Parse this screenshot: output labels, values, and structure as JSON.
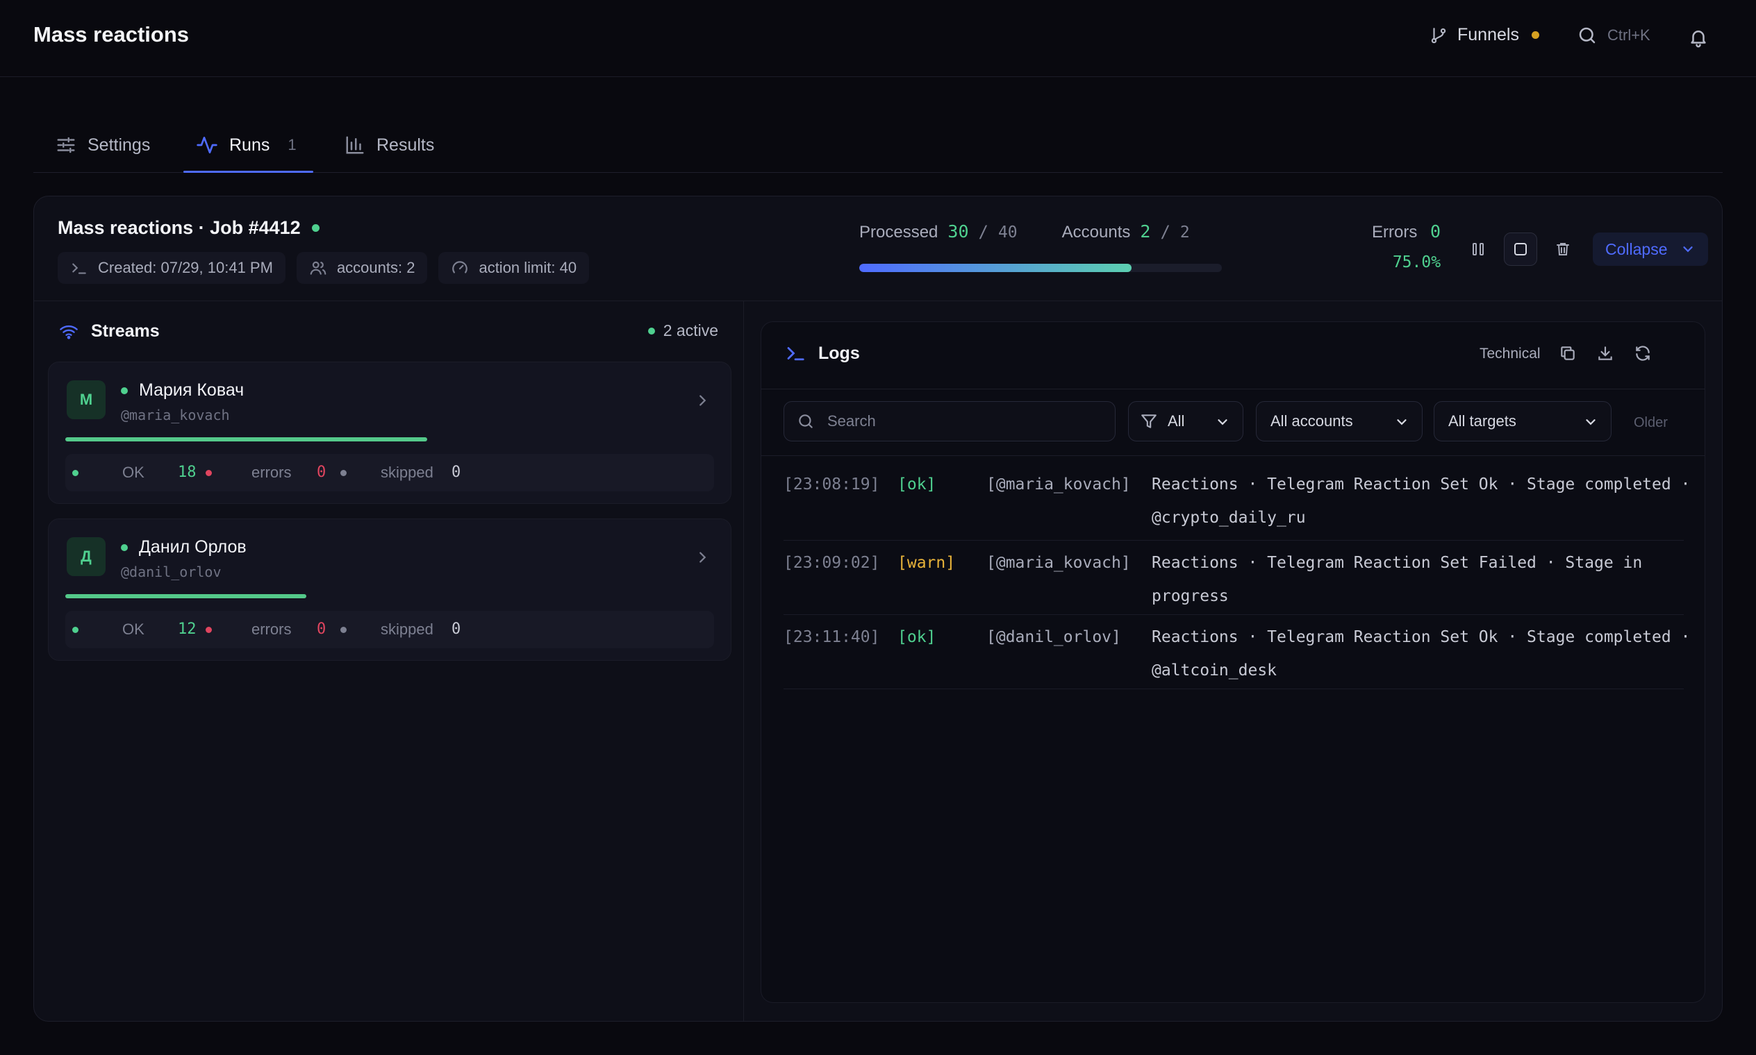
{
  "header": {
    "title": "Mass reactions",
    "funnels_label": "Funnels",
    "search_shortcut": "Ctrl+K"
  },
  "tabs": [
    {
      "label": "Settings"
    },
    {
      "label": "Runs",
      "count": "1"
    },
    {
      "label": "Results"
    }
  ],
  "job": {
    "title": "Mass reactions · Job #4412",
    "created": "Created: 07/29, 10:41 PM",
    "accounts": "accounts: 2",
    "action_limit": "action limit: 40",
    "processed_label": "Processed",
    "processed_value": "30",
    "processed_total": "40",
    "progress_fraction": 0.75,
    "accounts_label": "Accounts",
    "accounts_value": "2",
    "accounts_total": "2",
    "errors_label": "Errors",
    "errors_value": "0",
    "percent": "75.0%",
    "collapse_label": "Collapse"
  },
  "streams": {
    "title": "Streams",
    "active": "2 active",
    "items": [
      {
        "initial": "М",
        "name": "Мария Ковач",
        "handle": "@maria_kovach",
        "progress_fraction": 0.558,
        "ok_label": "OK",
        "ok": "18",
        "errors_label": "errors",
        "errors": "0",
        "skipped_label": "skipped",
        "skipped": "0"
      },
      {
        "initial": "Д",
        "name": "Данил Орлов",
        "handle": "@danil_orlov",
        "progress_fraction": 0.372,
        "ok_label": "OK",
        "ok": "12",
        "errors_label": "errors",
        "errors": "0",
        "skipped_label": "skipped",
        "skipped": "0"
      }
    ]
  },
  "logs": {
    "title": "Logs",
    "technical_label": "Technical",
    "search_placeholder": "Search",
    "filter_all": "All",
    "filter_accounts": "All accounts",
    "filter_targets": "All targets",
    "older_label": "Older",
    "entries": [
      {
        "time": "[23:08:19]",
        "level": "[ok]",
        "account": "[@maria_kovach]",
        "message": "Reactions · Telegram Reaction Set Ok · Stage completed · @crypto_daily_ru"
      },
      {
        "time": "[23:09:02]",
        "level": "[warn]",
        "account": "[@maria_kovach]",
        "message": "Reactions · Telegram Reaction Set Failed · Stage in progress"
      },
      {
        "time": "[23:11:40]",
        "level": "[ok]",
        "account": "[@danil_orlov]",
        "message": "Reactions · Telegram Reaction Set Ok · Stage completed · @altcoin_desk"
      }
    ]
  },
  "colors": {
    "accent": "#4f6bff",
    "success": "#4fd08f",
    "warning": "#e8b33a",
    "error": "#e0455f",
    "funnel_dot": "#d5a021"
  }
}
